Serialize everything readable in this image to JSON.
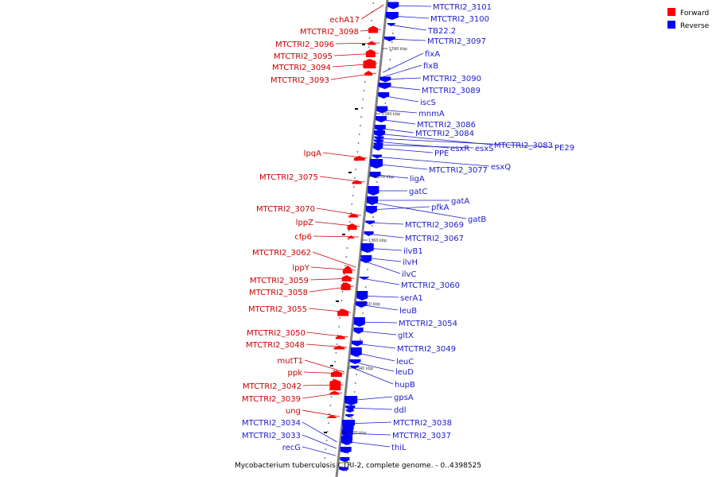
{
  "colors": {
    "forward": "#ff0000",
    "reverse": "#0000ff",
    "backbone": "#808080",
    "forward_text": "#cc0000",
    "reverse_text": "#1a1acc"
  },
  "legend": [
    {
      "label": "Forward",
      "strand": "forward"
    },
    {
      "label": "Reverse",
      "strand": "reverse"
    }
  ],
  "caption": "Mycobacterium tuberculosis CTRI-2, complete genome. - 0..4398525",
  "scale_marks": [
    "1390 kbp",
    "1380 kbp",
    "1370 kbp",
    "1360 kbp",
    "1350 kbp",
    "1340 kbp",
    "1330 kbp"
  ],
  "forward_genes": [
    "echA17",
    "MTCTRI2_3098",
    "MTCTRI2_3096",
    "MTCTRI2_3095",
    "MTCTRI2_3094",
    "MTCTRI2_3093",
    "lpqA",
    "MTCTRI2_3075",
    "MTCTRI2_3070",
    "lppZ",
    "cfp6",
    "MTCTRI2_3062",
    "lppY",
    "MTCTRI2_3059",
    "MTCTRI2_3058",
    "MTCTRI2_3055",
    "MTCTRI2_3050",
    "MTCTRI2_3048",
    "mutT1",
    "ppk",
    "MTCTRI2_3042",
    "MTCTRI2_3039",
    "ung"
  ],
  "reverse_genes_left": [
    "MTCTRI2_3034",
    "MTCTRI2_3033",
    "recG"
  ],
  "reverse_genes": [
    "MTCTRI2_3101",
    "MTCTRI2_3100",
    "TB22.2",
    "MTCTRI2_3097",
    "fixA",
    "fixB",
    "MTCTRI2_3090",
    "MTCTRI2_3089",
    "iscS",
    "mnmA",
    "MTCTRI2_3086",
    "MTCTRI2_3084",
    "MTCTRI2_3083",
    "PE29",
    "esxR",
    "esxS",
    "PPE",
    "MTCTRI2_3077",
    "esxQ",
    "ligA",
    "gatC",
    "gatA",
    "pfkA",
    "gatB",
    "MTCTRI2_3069",
    "MTCTRI2_3067",
    "ilvB1",
    "ilvH",
    "ilvC",
    "MTCTRI2_3060",
    "serA1",
    "leuB",
    "MTCTRI2_3054",
    "gltX",
    "MTCTRI2_3049",
    "leuC",
    "leuD",
    "hupB",
    "gpsA",
    "ddl",
    "MTCTRI2_3038",
    "MTCTRI2_3037",
    "thiL"
  ]
}
